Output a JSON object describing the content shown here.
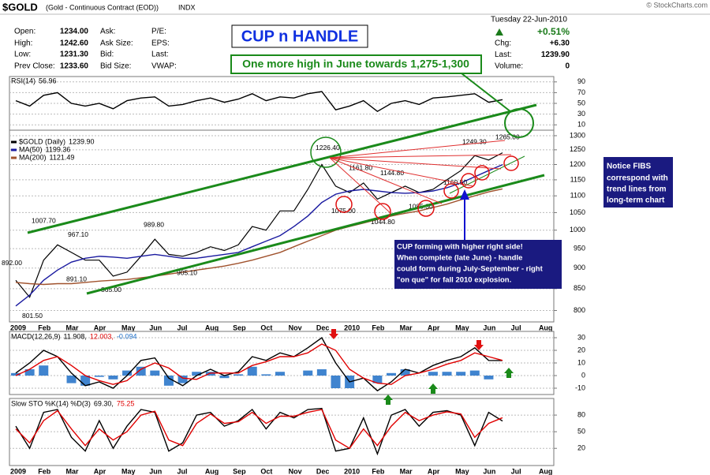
{
  "header": {
    "symbol": "$GOLD",
    "description": "(Gold - Continuous Contract (EOD))",
    "exchange": "INDX",
    "copyright": "© StockCharts.com",
    "quote": [
      [
        {
          "label": "Open:",
          "value": "1234.00"
        },
        {
          "label": "Ask:"
        },
        {
          "label": "P/E:"
        }
      ],
      [
        {
          "label": "High:",
          "value": "1242.60"
        },
        {
          "label": "Ask Size:"
        },
        {
          "label": "EPS:"
        }
      ],
      [
        {
          "label": "Low:",
          "value": "1231.30"
        },
        {
          "label": "Bid:"
        },
        {
          "label": "Last:"
        }
      ],
      [
        {
          "label": "Prev Close:",
          "value": "1233.60"
        },
        {
          "label": "Bid Size:"
        },
        {
          "label": "VWAP:"
        }
      ]
    ],
    "date": "Tuesday  22-Jun-2010",
    "change_pct": "+0.51%",
    "stats": [
      {
        "label": "Chg:",
        "value": "+6.30"
      },
      {
        "label": "Last:",
        "value": "1239.90"
      },
      {
        "label": "Volume:",
        "value": "0"
      }
    ]
  },
  "annotations": {
    "title": "CUP n HANDLE",
    "target": "One more high in June towards 1,275-1,300",
    "fibs_note": [
      "Notice FIBS",
      "correspond with",
      "trend lines from",
      "long-term chart"
    ],
    "cup_note": [
      "CUP forming with higher right side!",
      "When complete (late June) - handle",
      "could form during July-September - right",
      "\"on que\" for fall 2010 explosion."
    ]
  },
  "chart_data": [
    {
      "type": "line",
      "ylim": [
        0,
        100
      ],
      "yticks": [
        10,
        30,
        50,
        70,
        90
      ],
      "grid": true,
      "legend": [
        [
          {
            "text": "RSI(14)"
          },
          {
            "value": 56.96
          }
        ]
      ],
      "series": [
        {
          "color": "#000000",
          "values": [
            55,
            45,
            65,
            70,
            50,
            45,
            50,
            40,
            55,
            60,
            62,
            45,
            48,
            55,
            60,
            52,
            58,
            68,
            55,
            62,
            60,
            68,
            72,
            38,
            45,
            55,
            35,
            50,
            55,
            48,
            60,
            62,
            65,
            68,
            52,
            56.96,
            null,
            null,
            null,
            null
          ]
        }
      ]
    },
    {
      "type": "line",
      "log_scale": true,
      "ylim": [
        775,
        1320
      ],
      "yticks": [
        800,
        850,
        900,
        950,
        1000,
        1050,
        1100,
        1150,
        1200,
        1250,
        1300
      ],
      "grid": true,
      "categories": [
        "2009",
        null,
        "Feb",
        null,
        "Mar",
        null,
        "Apr",
        null,
        "May",
        null,
        "Jun",
        null,
        "Jul",
        null,
        "Aug",
        null,
        "Sep",
        null,
        "Oct",
        null,
        "Nov",
        null,
        "Dec",
        null,
        "2010",
        null,
        "Feb",
        null,
        "Mar",
        null,
        "Apr",
        null,
        "May",
        null,
        "Jun",
        null,
        "Jul",
        null,
        "Aug",
        null
      ],
      "legend": [
        [
          {
            "text": "$GOLD (Daily)",
            "color": "#000000"
          },
          {
            "value": 1239.9,
            "label": "1239.90"
          }
        ],
        [
          {
            "text": "MA(50)",
            "color": "#1a1aa0"
          },
          {
            "value": 1199.36
          }
        ],
        [
          {
            "text": "MA(200)",
            "color": "#a0522d"
          },
          {
            "value": 1121.49
          }
        ]
      ],
      "series": [
        {
          "color": "#000000",
          "values": [
            870,
            830,
            920,
            960,
            940,
            920,
            920,
            880,
            890,
            930,
            975,
            935,
            930,
            940,
            955,
            945,
            960,
            1010,
            1000,
            1055,
            1055,
            1120,
            1200,
            1130,
            1110,
            1140,
            1090,
            1110,
            1130,
            1110,
            1120,
            1150,
            1180,
            1230,
            1215,
            1239.9,
            null,
            null,
            null,
            null
          ]
        },
        {
          "color": "#1a1aa0",
          "values": [
            810,
            835,
            870,
            895,
            915,
            925,
            930,
            928,
            925,
            930,
            935,
            930,
            925,
            925,
            930,
            935,
            940,
            955,
            970,
            985,
            1010,
            1040,
            1080,
            1105,
            1115,
            1120,
            1115,
            1110,
            1108,
            1110,
            1115,
            1125,
            1140,
            1160,
            1180,
            1199.36,
            null,
            null,
            null,
            null
          ]
        },
        {
          "color": "#a0522d",
          "values": [
            865,
            862,
            860,
            862,
            862,
            865,
            868,
            870,
            872,
            876,
            880,
            885,
            890,
            895,
            900,
            905,
            912,
            920,
            930,
            940,
            955,
            970,
            985,
            1000,
            1010,
            1020,
            1030,
            1040,
            1048,
            1055,
            1065,
            1075,
            1088,
            1100,
            1112,
            1121.49,
            null,
            null,
            null,
            null
          ]
        }
      ],
      "point_labels": [
        {
          "value": 892,
          "label": "892.00"
        },
        {
          "value": 801.5,
          "label": "801.50"
        },
        {
          "value": 1007.7,
          "label": "1007.70"
        },
        {
          "value": 967.1,
          "label": "967.10"
        },
        {
          "value": 891.1,
          "label": "891.10"
        },
        {
          "value": 865,
          "label": "865.00"
        },
        {
          "value": 989.8,
          "label": "989.80"
        },
        {
          "value": 905.1,
          "label": "905.10"
        },
        {
          "value": 1226.4,
          "label": "1226.40"
        },
        {
          "value": 1161.8,
          "label": "1161.80"
        },
        {
          "value": 1075,
          "label": "1075.00"
        },
        {
          "value": 1144.8,
          "label": "1144.80"
        },
        {
          "value": 1044.8,
          "label": "1044.80"
        },
        {
          "value": 1085.3,
          "label": "1085.30"
        },
        {
          "value": 1249.3,
          "label": "1249.30"
        },
        {
          "value": 1160.5,
          "label": "1160.50"
        },
        {
          "value": 1265,
          "label": "1265.00"
        }
      ]
    },
    {
      "type": "line",
      "ylim": [
        -15,
        35
      ],
      "yticks": [
        -10,
        0,
        10,
        20,
        30
      ],
      "grid": true,
      "legend": [
        [
          {
            "text": "MACD(12,26,9)"
          },
          {
            "value": 11.908,
            "label": "11.908,"
          },
          {
            "value": 12.003,
            "label": "12.003,",
            "color": "#e00000"
          },
          {
            "value": -0.094,
            "color": "#1e6fc7"
          }
        ]
      ],
      "series": [
        {
          "type": "bar",
          "color": "#1e6fc7",
          "values": [
            2,
            5,
            8,
            0,
            -6,
            -8,
            -1,
            -3,
            4,
            7,
            4,
            -8,
            -6,
            3,
            3,
            -2,
            1,
            7,
            1,
            3,
            0,
            4,
            5,
            -10,
            -10,
            0,
            -6,
            2,
            5,
            0,
            3,
            3,
            3,
            4,
            -3,
            -0.094,
            null,
            null,
            null,
            null
          ]
        },
        {
          "color": "#000000",
          "values": [
            2,
            10,
            20,
            15,
            2,
            -8,
            -5,
            -10,
            0,
            12,
            14,
            -2,
            -8,
            0,
            5,
            0,
            3,
            15,
            12,
            18,
            15,
            22,
            30,
            10,
            -5,
            -2,
            -12,
            -5,
            5,
            2,
            8,
            12,
            15,
            22,
            12,
            11.908,
            null,
            null,
            null,
            null
          ]
        },
        {
          "color": "#e00000",
          "values": [
            0,
            5,
            12,
            15,
            8,
            0,
            -4,
            -7,
            -4,
            5,
            10,
            6,
            -2,
            -3,
            2,
            2,
            2,
            8,
            11,
            15,
            15,
            18,
            25,
            20,
            5,
            -2,
            -6,
            -7,
            0,
            2,
            5,
            9,
            12,
            18,
            15,
            12.003,
            null,
            null,
            null,
            null
          ]
        }
      ]
    },
    {
      "type": "line",
      "ylim": [
        -11,
        110
      ],
      "yticks": [
        20,
        50,
        80
      ],
      "grid": true,
      "categories": [
        "2009",
        null,
        "Feb",
        null,
        "Mar",
        null,
        "Apr",
        null,
        "May",
        null,
        "Jun",
        null,
        "Jul",
        null,
        "Aug",
        null,
        "Sep",
        null,
        "Oct",
        null,
        "Nov",
        null,
        "Dec",
        null,
        "2010",
        null,
        "Feb",
        null,
        "Mar",
        null,
        "Apr",
        null,
        "May",
        null,
        "Jun",
        null,
        "Jul",
        null,
        "Aug",
        null
      ],
      "legend": [
        [
          {
            "text": "Slow STO %K(14) %D(3)"
          },
          {
            "value": 69.3,
            "label": "69.30,"
          },
          {
            "value": 75.25,
            "color": "#e00000"
          }
        ]
      ],
      "series": [
        {
          "color": "#000000",
          "values": [
            60,
            20,
            85,
            90,
            40,
            15,
            70,
            20,
            60,
            90,
            85,
            15,
            30,
            80,
            85,
            60,
            70,
            90,
            55,
            85,
            75,
            90,
            92,
            15,
            20,
            75,
            10,
            80,
            90,
            60,
            85,
            88,
            80,
            25,
            85,
            69.3,
            null,
            null,
            null,
            null
          ]
        },
        {
          "color": "#e00000",
          "values": [
            55,
            30,
            70,
            88,
            55,
            25,
            55,
            35,
            50,
            80,
            87,
            35,
            25,
            65,
            82,
            65,
            68,
            85,
            65,
            78,
            78,
            85,
            90,
            35,
            20,
            55,
            25,
            60,
            85,
            70,
            80,
            86,
            82,
            40,
            65,
            75.25,
            null,
            null,
            null,
            null
          ]
        }
      ]
    }
  ]
}
